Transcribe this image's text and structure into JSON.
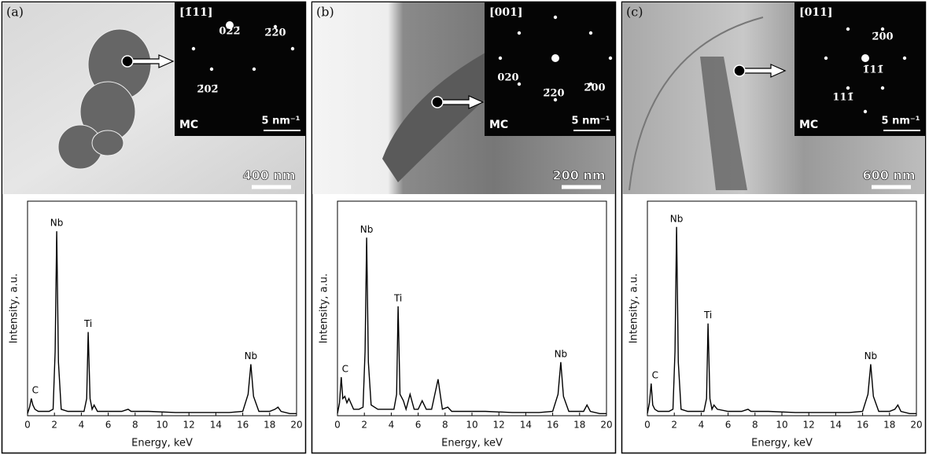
{
  "chart_data": [
    {
      "type": "line",
      "panel_label": "(a)",
      "scale_bar": "400 nm",
      "inset": {
        "zone_axis": "[1̄11]",
        "phase": "MC",
        "scale": "5 nm⁻¹",
        "spots": [
          "022̄",
          "2̄20",
          "2̄02̄"
        ]
      },
      "x_label": "Energy, keV",
      "y_label": "Intensity, a.u.",
      "xlim": [
        0,
        20
      ],
      "xticks": [
        0,
        2,
        4,
        6,
        8,
        10,
        12,
        14,
        16,
        18,
        20
      ],
      "ylim": [
        0,
        100
      ],
      "peak_labels": [
        {
          "text": "C",
          "x": 0.28
        },
        {
          "text": "Nb",
          "x": 2.17
        },
        {
          "text": "Ti",
          "x": 4.51
        },
        {
          "text": "Nb",
          "x": 16.6
        }
      ],
      "series": [
        {
          "color": "#000000",
          "x": [
            0,
            0.15,
            0.28,
            0.4,
            0.55,
            0.8,
            1.2,
            1.6,
            1.9,
            2.05,
            2.17,
            2.3,
            2.5,
            3,
            3.5,
            4.2,
            4.4,
            4.51,
            4.65,
            4.8,
            4.95,
            5.2,
            6,
            7,
            7.48,
            7.7,
            9,
            11,
            13,
            15,
            16,
            16.4,
            16.6,
            16.8,
            17.2,
            18,
            18.4,
            18.62,
            18.85,
            19.5,
            20
          ],
          "values": [
            1,
            4,
            8,
            5,
            3,
            2,
            2,
            2,
            3,
            30,
            86,
            25,
            3,
            2,
            2,
            2,
            8,
            39,
            8,
            3,
            5,
            2,
            2,
            2,
            3,
            2,
            2,
            1.5,
            1.5,
            1.5,
            2,
            10,
            24,
            9,
            2,
            2,
            3,
            4,
            2,
            1,
            1
          ]
        }
      ]
    },
    {
      "type": "line",
      "panel_label": "(b)",
      "scale_bar": "200 nm",
      "inset": {
        "zone_axis": "[001]",
        "phase": "MC",
        "scale": "5 nm⁻¹",
        "spots": [
          "020",
          "2̄20",
          "2̄00"
        ]
      },
      "x_label": "Energy, keV",
      "y_label": "Intensity, a.u.",
      "xlim": [
        0,
        20
      ],
      "xticks": [
        0,
        2,
        4,
        6,
        8,
        10,
        12,
        14,
        16,
        18,
        20
      ],
      "ylim": [
        0,
        100
      ],
      "peak_labels": [
        {
          "text": "C",
          "x": 0.28
        },
        {
          "text": "Nb",
          "x": 2.17
        },
        {
          "text": "Ti",
          "x": 4.51
        },
        {
          "text": "Nb",
          "x": 16.6
        }
      ],
      "series": [
        {
          "color": "#000000",
          "x": [
            0,
            0.15,
            0.28,
            0.4,
            0.55,
            0.7,
            0.85,
            1.2,
            1.6,
            1.9,
            2.05,
            2.17,
            2.3,
            2.5,
            3,
            3.5,
            4.2,
            4.4,
            4.51,
            4.65,
            4.9,
            5.1,
            5.4,
            5.7,
            6,
            6.3,
            6.6,
            7,
            7.48,
            7.8,
            8.2,
            8.5,
            9,
            11,
            13,
            15,
            16,
            16.4,
            16.6,
            16.8,
            17.2,
            18,
            18.3,
            18.55,
            18.8,
            19.5,
            20
          ],
          "values": [
            1,
            6,
            18,
            8,
            9,
            6,
            8,
            3,
            3,
            4,
            30,
            83,
            25,
            5,
            3,
            3,
            3,
            10,
            51,
            10,
            7,
            3,
            10,
            3,
            3,
            7,
            3,
            3,
            17,
            3,
            4,
            2,
            2,
            2,
            1.5,
            1.5,
            2,
            10,
            25,
            9,
            2,
            2,
            2,
            5,
            2,
            1,
            1
          ]
        }
      ]
    },
    {
      "type": "line",
      "panel_label": "(c)",
      "scale_bar": "600 nm",
      "inset": {
        "zone_axis": "[011]",
        "phase": "MC",
        "scale": "5 nm⁻¹",
        "spots": [
          "2̄00",
          "1̄11̄",
          "111̄"
        ]
      },
      "x_label": "Energy, keV",
      "y_label": "Intensity, a.u.",
      "xlim": [
        0,
        20
      ],
      "xticks": [
        0,
        2,
        4,
        6,
        8,
        10,
        12,
        14,
        16,
        18,
        20
      ],
      "ylim": [
        0,
        100
      ],
      "peak_labels": [
        {
          "text": "C",
          "x": 0.28
        },
        {
          "text": "Nb",
          "x": 2.17
        },
        {
          "text": "Ti",
          "x": 4.51
        },
        {
          "text": "Nb",
          "x": 16.6
        }
      ],
      "series": [
        {
          "color": "#000000",
          "x": [
            0,
            0.15,
            0.28,
            0.4,
            0.55,
            0.8,
            1.2,
            1.6,
            1.9,
            2.05,
            2.17,
            2.3,
            2.5,
            3,
            3.5,
            4.2,
            4.4,
            4.51,
            4.65,
            4.8,
            4.95,
            5.2,
            6,
            7,
            7.48,
            7.7,
            9,
            11,
            13,
            15,
            16,
            16.4,
            16.6,
            16.8,
            17.2,
            18,
            18.4,
            18.62,
            18.85,
            19.5,
            20
          ],
          "values": [
            1,
            6,
            15,
            5,
            3,
            2,
            2,
            2,
            3,
            30,
            88,
            25,
            3,
            2,
            2,
            2,
            8,
            43,
            8,
            3,
            5,
            3,
            2,
            2,
            3,
            2,
            2,
            1.5,
            1.5,
            1.5,
            2,
            10,
            24,
            9,
            2,
            2,
            3,
            5,
            2,
            1,
            1
          ]
        }
      ]
    }
  ]
}
